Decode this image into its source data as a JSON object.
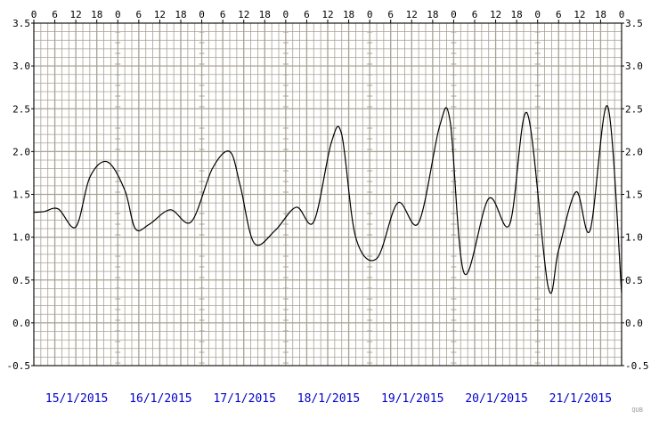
{
  "chart_data": {
    "type": "line",
    "title": "",
    "xlabel": "",
    "ylabel": "",
    "ylim": [
      -0.5,
      3.5
    ],
    "y_ticks": [
      "-0.5",
      "0.0",
      "0.5",
      "1.0",
      "1.5",
      "2.0",
      "2.5",
      "3.0",
      "3.5"
    ],
    "y_tick_values": [
      -0.5,
      0.0,
      0.5,
      1.0,
      1.5,
      2.0,
      2.5,
      3.0,
      3.5
    ],
    "hour_ticks": [
      "0",
      "6",
      "12",
      "18"
    ],
    "final_hour_tick": "0",
    "dates": [
      "15/1/2015",
      "16/1/2015",
      "17/1/2015",
      "18/1/2015",
      "19/1/2015",
      "20/1/2015",
      "21/1/2015"
    ],
    "x_unit": "hours since 00:00 15/1/2015",
    "grid": true,
    "line_color": "#000000",
    "grid_color": "#a8a294",
    "date_color": "#0000cc",
    "credit": "QUB",
    "series": [
      {
        "x": [
          0,
          3,
          7,
          12,
          16,
          21,
          26,
          29,
          33,
          39,
          45,
          51,
          56,
          59,
          63,
          69,
          75,
          80,
          85,
          88,
          92,
          98,
          104,
          110,
          116,
          119,
          123,
          130,
          136,
          141,
          147,
          150,
          155,
          159,
          164,
          168
        ],
        "values": [
          1.29,
          1.3,
          1.33,
          1.12,
          1.7,
          1.88,
          1.55,
          1.1,
          1.15,
          1.32,
          1.18,
          1.8,
          2.0,
          1.6,
          0.93,
          1.08,
          1.35,
          1.18,
          2.1,
          2.2,
          1.0,
          0.75,
          1.4,
          1.17,
          2.3,
          2.35,
          0.58,
          1.45,
          1.15,
          2.45,
          0.42,
          0.85,
          1.53,
          1.08,
          2.53,
          0.35
        ]
      }
    ]
  }
}
